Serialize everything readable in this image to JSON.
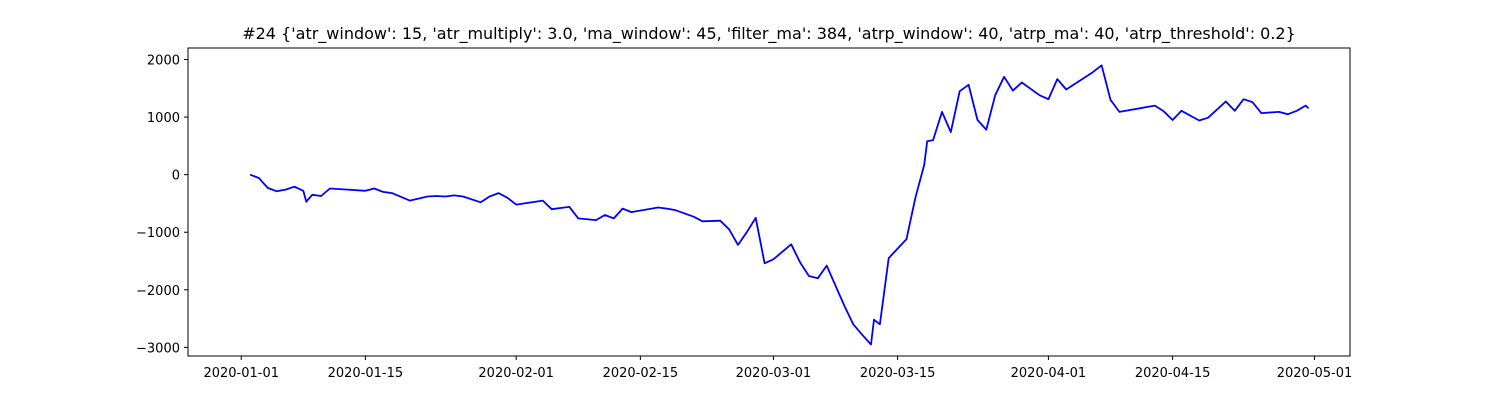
{
  "chart_data": {
    "type": "line",
    "title": "#24 {'atr_window': 15, 'atr_multiply': 3.0, 'ma_window': 45, 'filter_ma': 384, 'atrp_window': 40, 'atrp_ma': 40, 'atrp_threshold': 0.2}",
    "xlabel": "",
    "ylabel": "",
    "xlim": [
      "2019-12-26",
      "2020-05-05"
    ],
    "ylim": [
      -3150,
      2200
    ],
    "grid": false,
    "legend": "none",
    "x_ticks": [
      "2020-01-01",
      "2020-01-15",
      "2020-02-01",
      "2020-02-15",
      "2020-03-01",
      "2020-03-15",
      "2020-04-01",
      "2020-04-15",
      "2020-05-01"
    ],
    "y_ticks": [
      -3000,
      -2000,
      -1000,
      0,
      1000,
      2000
    ],
    "y_tick_labels": [
      "−3000",
      "−2000",
      "−1000",
      "0",
      "1000",
      "2000"
    ],
    "series": [
      {
        "name": "",
        "color": "#0000ff",
        "x": [
          "2020-01-02",
          "2020-01-02",
          "2020-01-03",
          "2020-01-03",
          "2020-01-04",
          "2020-01-05",
          "2020-01-06",
          "2020-01-07",
          "2020-01-08",
          "2020-01-08",
          "2020-01-09",
          "2020-01-10",
          "2020-01-11",
          "2020-01-13",
          "2020-01-15",
          "2020-01-16",
          "2020-01-17",
          "2020-01-18",
          "2020-01-20",
          "2020-01-22",
          "2020-01-23",
          "2020-01-24",
          "2020-01-25",
          "2020-01-26",
          "2020-01-28",
          "2020-01-29",
          "2020-01-30",
          "2020-01-31",
          "2020-02-01",
          "2020-02-04",
          "2020-02-05",
          "2020-02-06",
          "2020-02-07",
          "2020-02-08",
          "2020-02-10",
          "2020-02-11",
          "2020-02-12",
          "2020-02-13",
          "2020-02-14",
          "2020-02-17",
          "2020-02-18",
          "2020-02-19",
          "2020-02-21",
          "2020-02-22",
          "2020-02-24",
          "2020-02-25",
          "2020-02-26",
          "2020-02-27",
          "2020-02-28",
          "2020-02-29",
          "2020-03-01",
          "2020-03-03",
          "2020-03-04",
          "2020-03-05",
          "2020-03-06",
          "2020-03-07",
          "2020-03-09",
          "2020-03-10",
          "2020-03-11",
          "2020-03-12",
          "2020-03-12",
          "2020-03-13",
          "2020-03-14",
          "2020-03-16",
          "2020-03-17",
          "2020-03-18",
          "2020-03-18",
          "2020-03-19",
          "2020-03-20",
          "2020-03-21",
          "2020-03-22",
          "2020-03-23",
          "2020-03-24",
          "2020-03-25",
          "2020-03-26",
          "2020-03-27",
          "2020-03-28",
          "2020-03-29",
          "2020-03-31",
          "2020-04-01",
          "2020-04-02",
          "2020-04-03",
          "2020-04-06",
          "2020-04-07",
          "2020-04-08",
          "2020-04-09",
          "2020-04-13",
          "2020-04-14",
          "2020-04-15",
          "2020-04-16",
          "2020-04-18",
          "2020-04-19",
          "2020-04-21",
          "2020-04-22",
          "2020-04-23",
          "2020-04-24",
          "2020-04-25",
          "2020-04-27",
          "2020-04-28",
          "2020-04-29",
          "2020-04-30",
          "2020-04-30"
        ],
        "y": [
          0,
          -20,
          -60,
          -120,
          -230,
          -290,
          -260,
          -210,
          -280,
          -470,
          -350,
          -370,
          -240,
          -260,
          -280,
          -240,
          -300,
          -320,
          -450,
          -380,
          -370,
          -380,
          -360,
          -380,
          -480,
          -380,
          -320,
          -400,
          -520,
          -450,
          -600,
          -580,
          -560,
          -760,
          -790,
          -700,
          -760,
          -590,
          -650,
          -570,
          -590,
          -620,
          -730,
          -810,
          -800,
          -950,
          -1220,
          -1000,
          -750,
          -1540,
          -1470,
          -1210,
          -1520,
          -1760,
          -1800,
          -1580,
          -2280,
          -2600,
          -2780,
          -2950,
          -2520,
          -2600,
          -1450,
          -1120,
          -400,
          170,
          580,
          600,
          1090,
          740,
          1450,
          1560,
          950,
          780,
          1380,
          1700,
          1460,
          1600,
          1380,
          1310,
          1660,
          1480,
          1780,
          1900,
          1300,
          1090,
          1200,
          1100,
          950,
          1110,
          940,
          990,
          1270,
          1110,
          1310,
          1260,
          1070,
          1090,
          1050,
          1110,
          1200,
          1150
        ]
      }
    ]
  }
}
